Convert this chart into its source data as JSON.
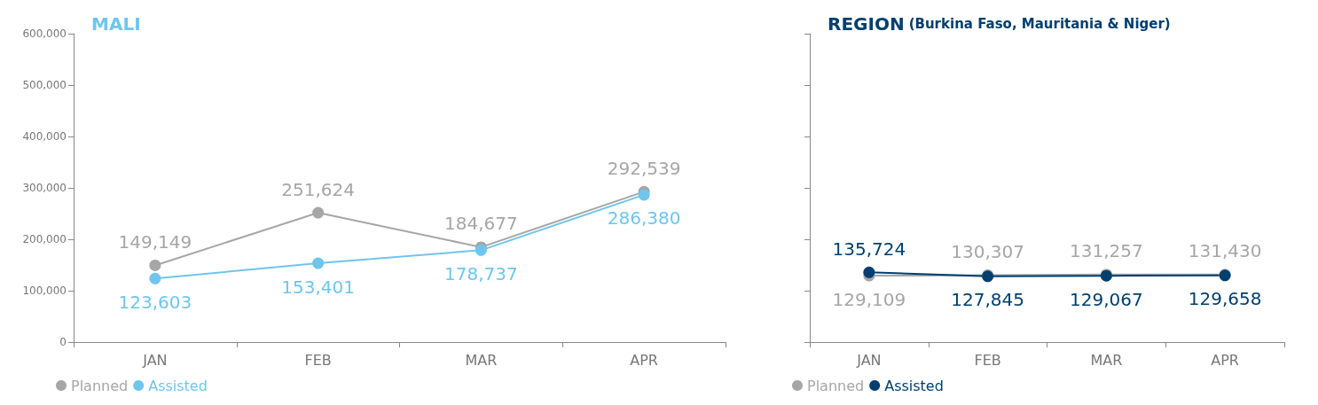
{
  "chart_data": [
    {
      "type": "line",
      "title": "MALI",
      "categories": [
        "JAN",
        "FEB",
        "MAR",
        "APR"
      ],
      "series": [
        {
          "name": "Planned",
          "color": "#a6a6a6",
          "values": [
            149149,
            251624,
            184677,
            292539
          ],
          "value_labels": [
            "149,149",
            "251,624",
            "184,677",
            "292,539"
          ]
        },
        {
          "name": "Assisted",
          "color": "#6ec6ee",
          "values": [
            123603,
            153401,
            178737,
            286380
          ],
          "value_labels": [
            "123,603",
            "153,401",
            "178,737",
            "286,380"
          ]
        }
      ],
      "ylim": [
        0,
        600000
      ],
      "yticks": [
        0,
        {
          "value": 100000,
          "label": "100,000"
        },
        {
          "value": 200000,
          "label": "200,000"
        },
        {
          "value": 300000,
          "label": "300,000"
        },
        {
          "value": 400000,
          "label": "400,000"
        },
        {
          "value": 500000,
          "label": "500,000"
        },
        {
          "value": 600000,
          "label": "600,000"
        }
      ],
      "grid": false,
      "legend": "bottom left",
      "marker": "circle"
    },
    {
      "type": "line",
      "title": "REGION",
      "subtitle": "(Burkina Faso, Mauritania & Niger)",
      "categories": [
        "JAN",
        "FEB",
        "MAR",
        "APR"
      ],
      "series": [
        {
          "name": "Planned",
          "color": "#a6a6a6",
          "values": [
            129109,
            130307,
            131257,
            131430
          ],
          "value_labels": [
            "129,109",
            "130,307",
            "131,257",
            "131,430"
          ]
        },
        {
          "name": "Assisted",
          "color": "#003f6e",
          "values": [
            135724,
            127845,
            129067,
            129658
          ],
          "value_labels": [
            "135,724",
            "127,845",
            "129,067",
            "129,658"
          ]
        }
      ],
      "ylim": [
        0,
        600000
      ],
      "yticks": [
        {
          "value": 0,
          "label": null
        },
        {
          "value": 100000,
          "label": null
        },
        {
          "value": 200000,
          "label": null
        },
        {
          "value": 300000,
          "label": null
        },
        {
          "value": 400000,
          "label": null
        },
        {
          "value": 500000,
          "label": null
        },
        {
          "value": 600000,
          "label": null
        }
      ],
      "tick_labels": "x",
      "grid": false,
      "legend": "bottom left",
      "marker": "circle"
    }
  ]
}
